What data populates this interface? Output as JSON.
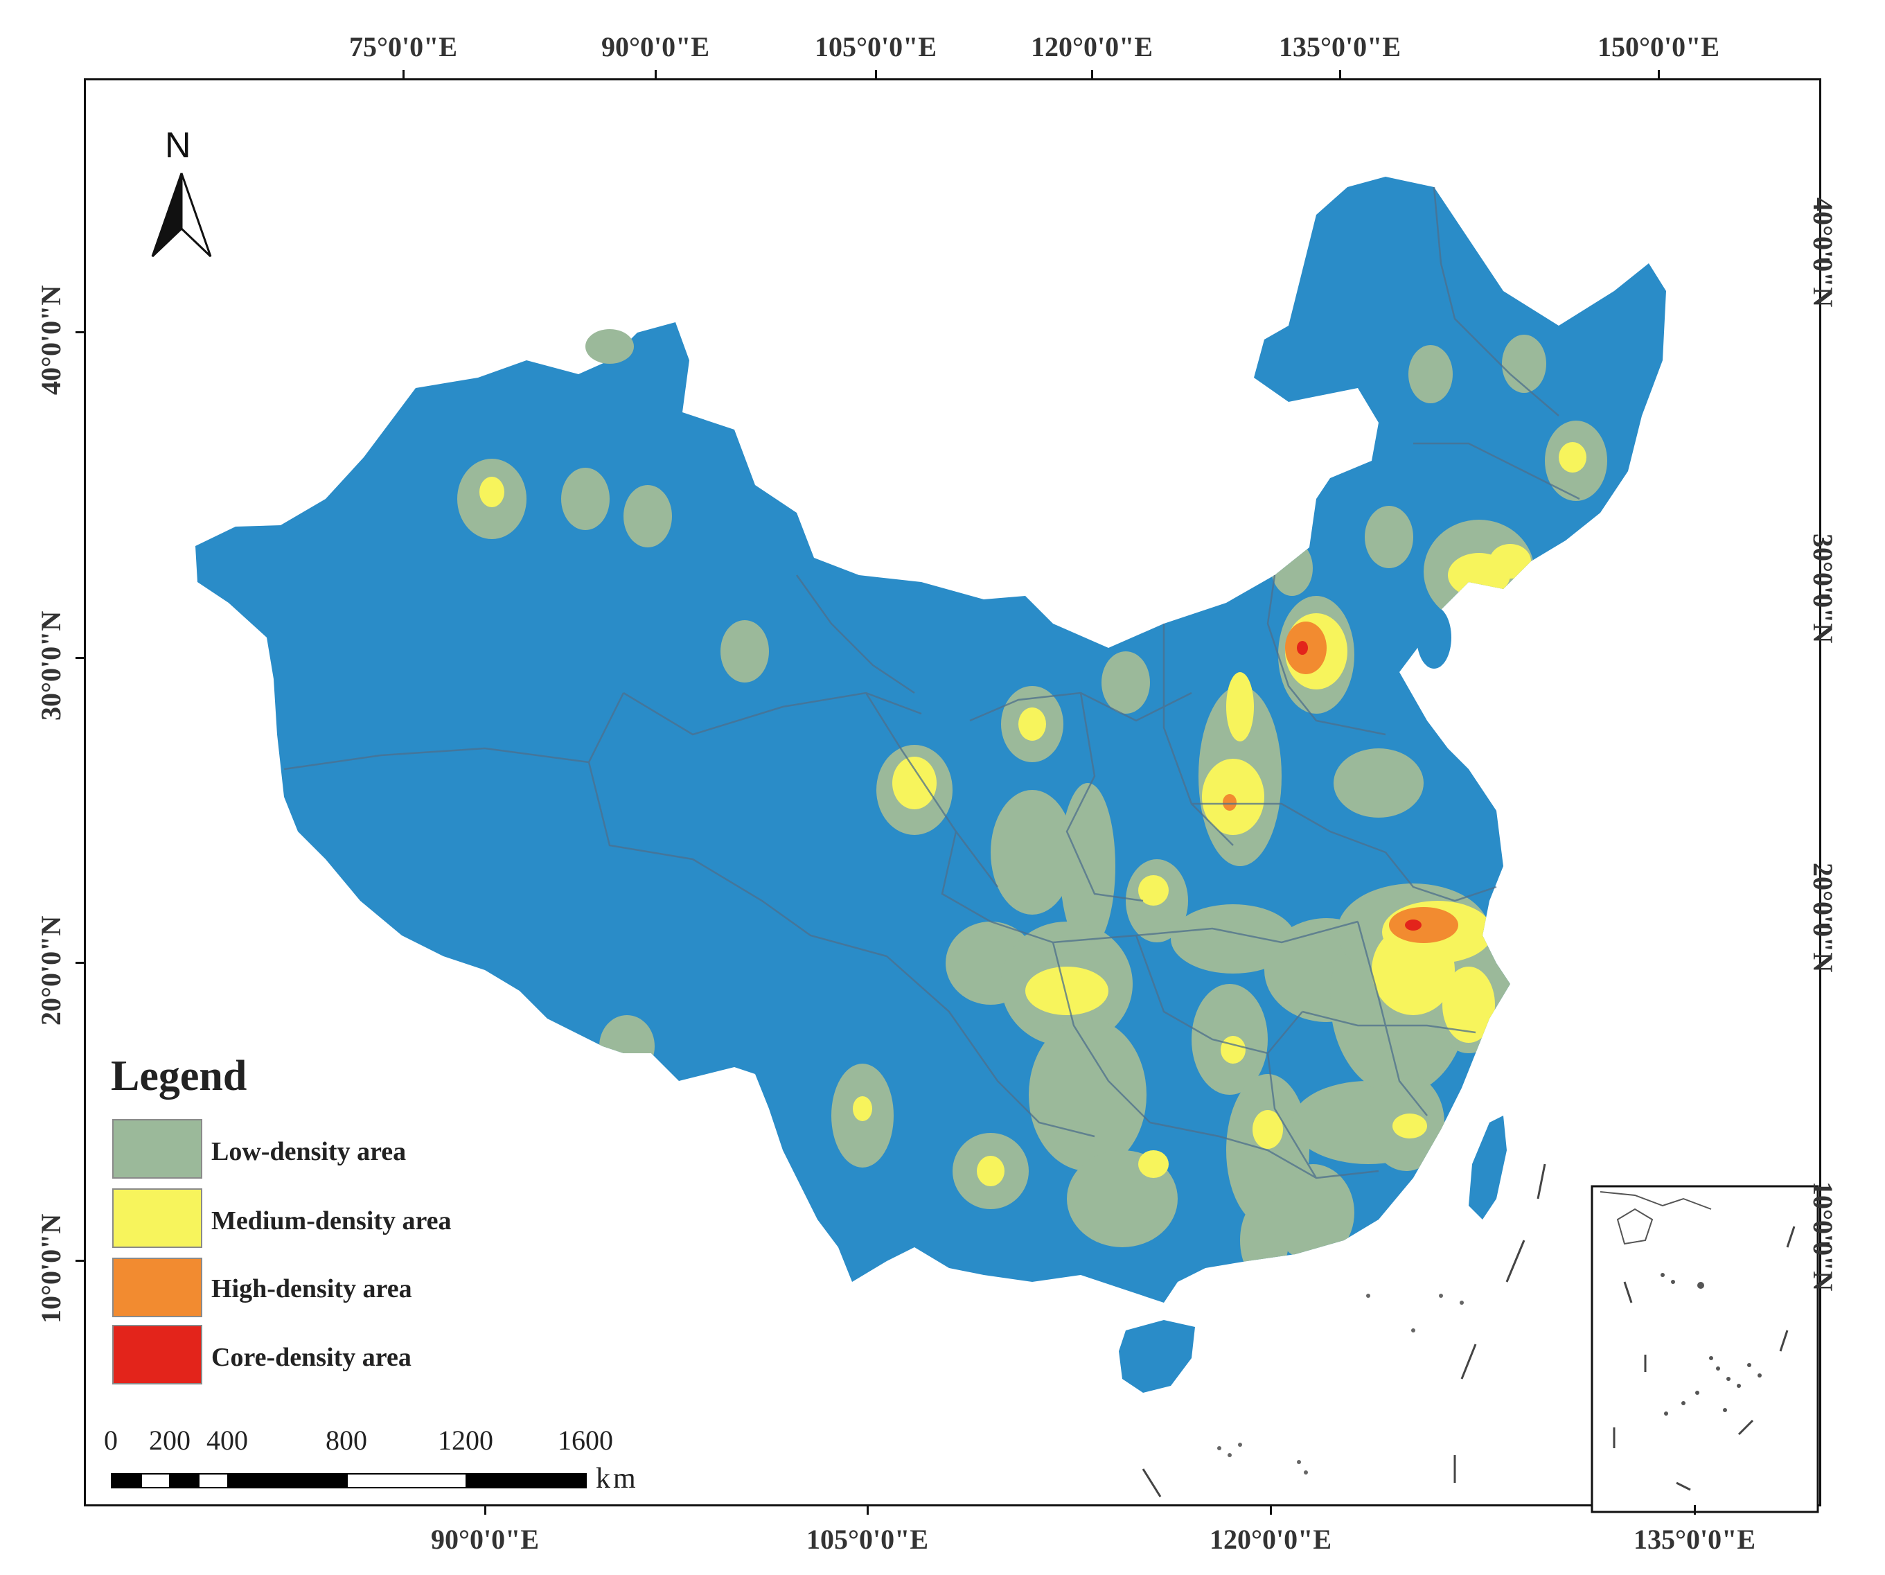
{
  "map": {
    "top_longitudes": [
      "75°0'0\"E",
      "90°0'0\"E",
      "105°0'0\"E",
      "120°0'0\"E",
      "135°0'0\"E",
      "150°0'0\"E"
    ],
    "bottom_longitudes": [
      "90°0'0\"E",
      "105°0'0\"E",
      "120°0'0\"E",
      "135°0'0\"E"
    ],
    "left_latitudes": [
      "40°0'0\"N",
      "30°0'0\"N",
      "20°0'0\"N",
      "10°0'0\"N"
    ],
    "right_latitudes": [
      "40°0'0\"N",
      "30°0'0\"N",
      "20°0'0\"N",
      "10°0'0\"N"
    ],
    "north_label": "N",
    "colors": {
      "land": "#2a8cc8",
      "low": "#9bb99a",
      "medium": "#f7f45c",
      "high": "#f28b30",
      "core": "#e3241b",
      "boundary": "#4d6f8c"
    }
  },
  "legend": {
    "title": "Legend",
    "items": [
      {
        "label": "Low-density area",
        "color": "#9bb99a"
      },
      {
        "label": "Medium-density area",
        "color": "#f7f45c"
      },
      {
        "label": "High-density area",
        "color": "#f28b30"
      },
      {
        "label": "Core-density area",
        "color": "#e3241b"
      }
    ]
  },
  "scale": {
    "ticks": [
      "0",
      "200",
      "400",
      "800",
      "1200",
      "1600"
    ],
    "unit": "km"
  }
}
